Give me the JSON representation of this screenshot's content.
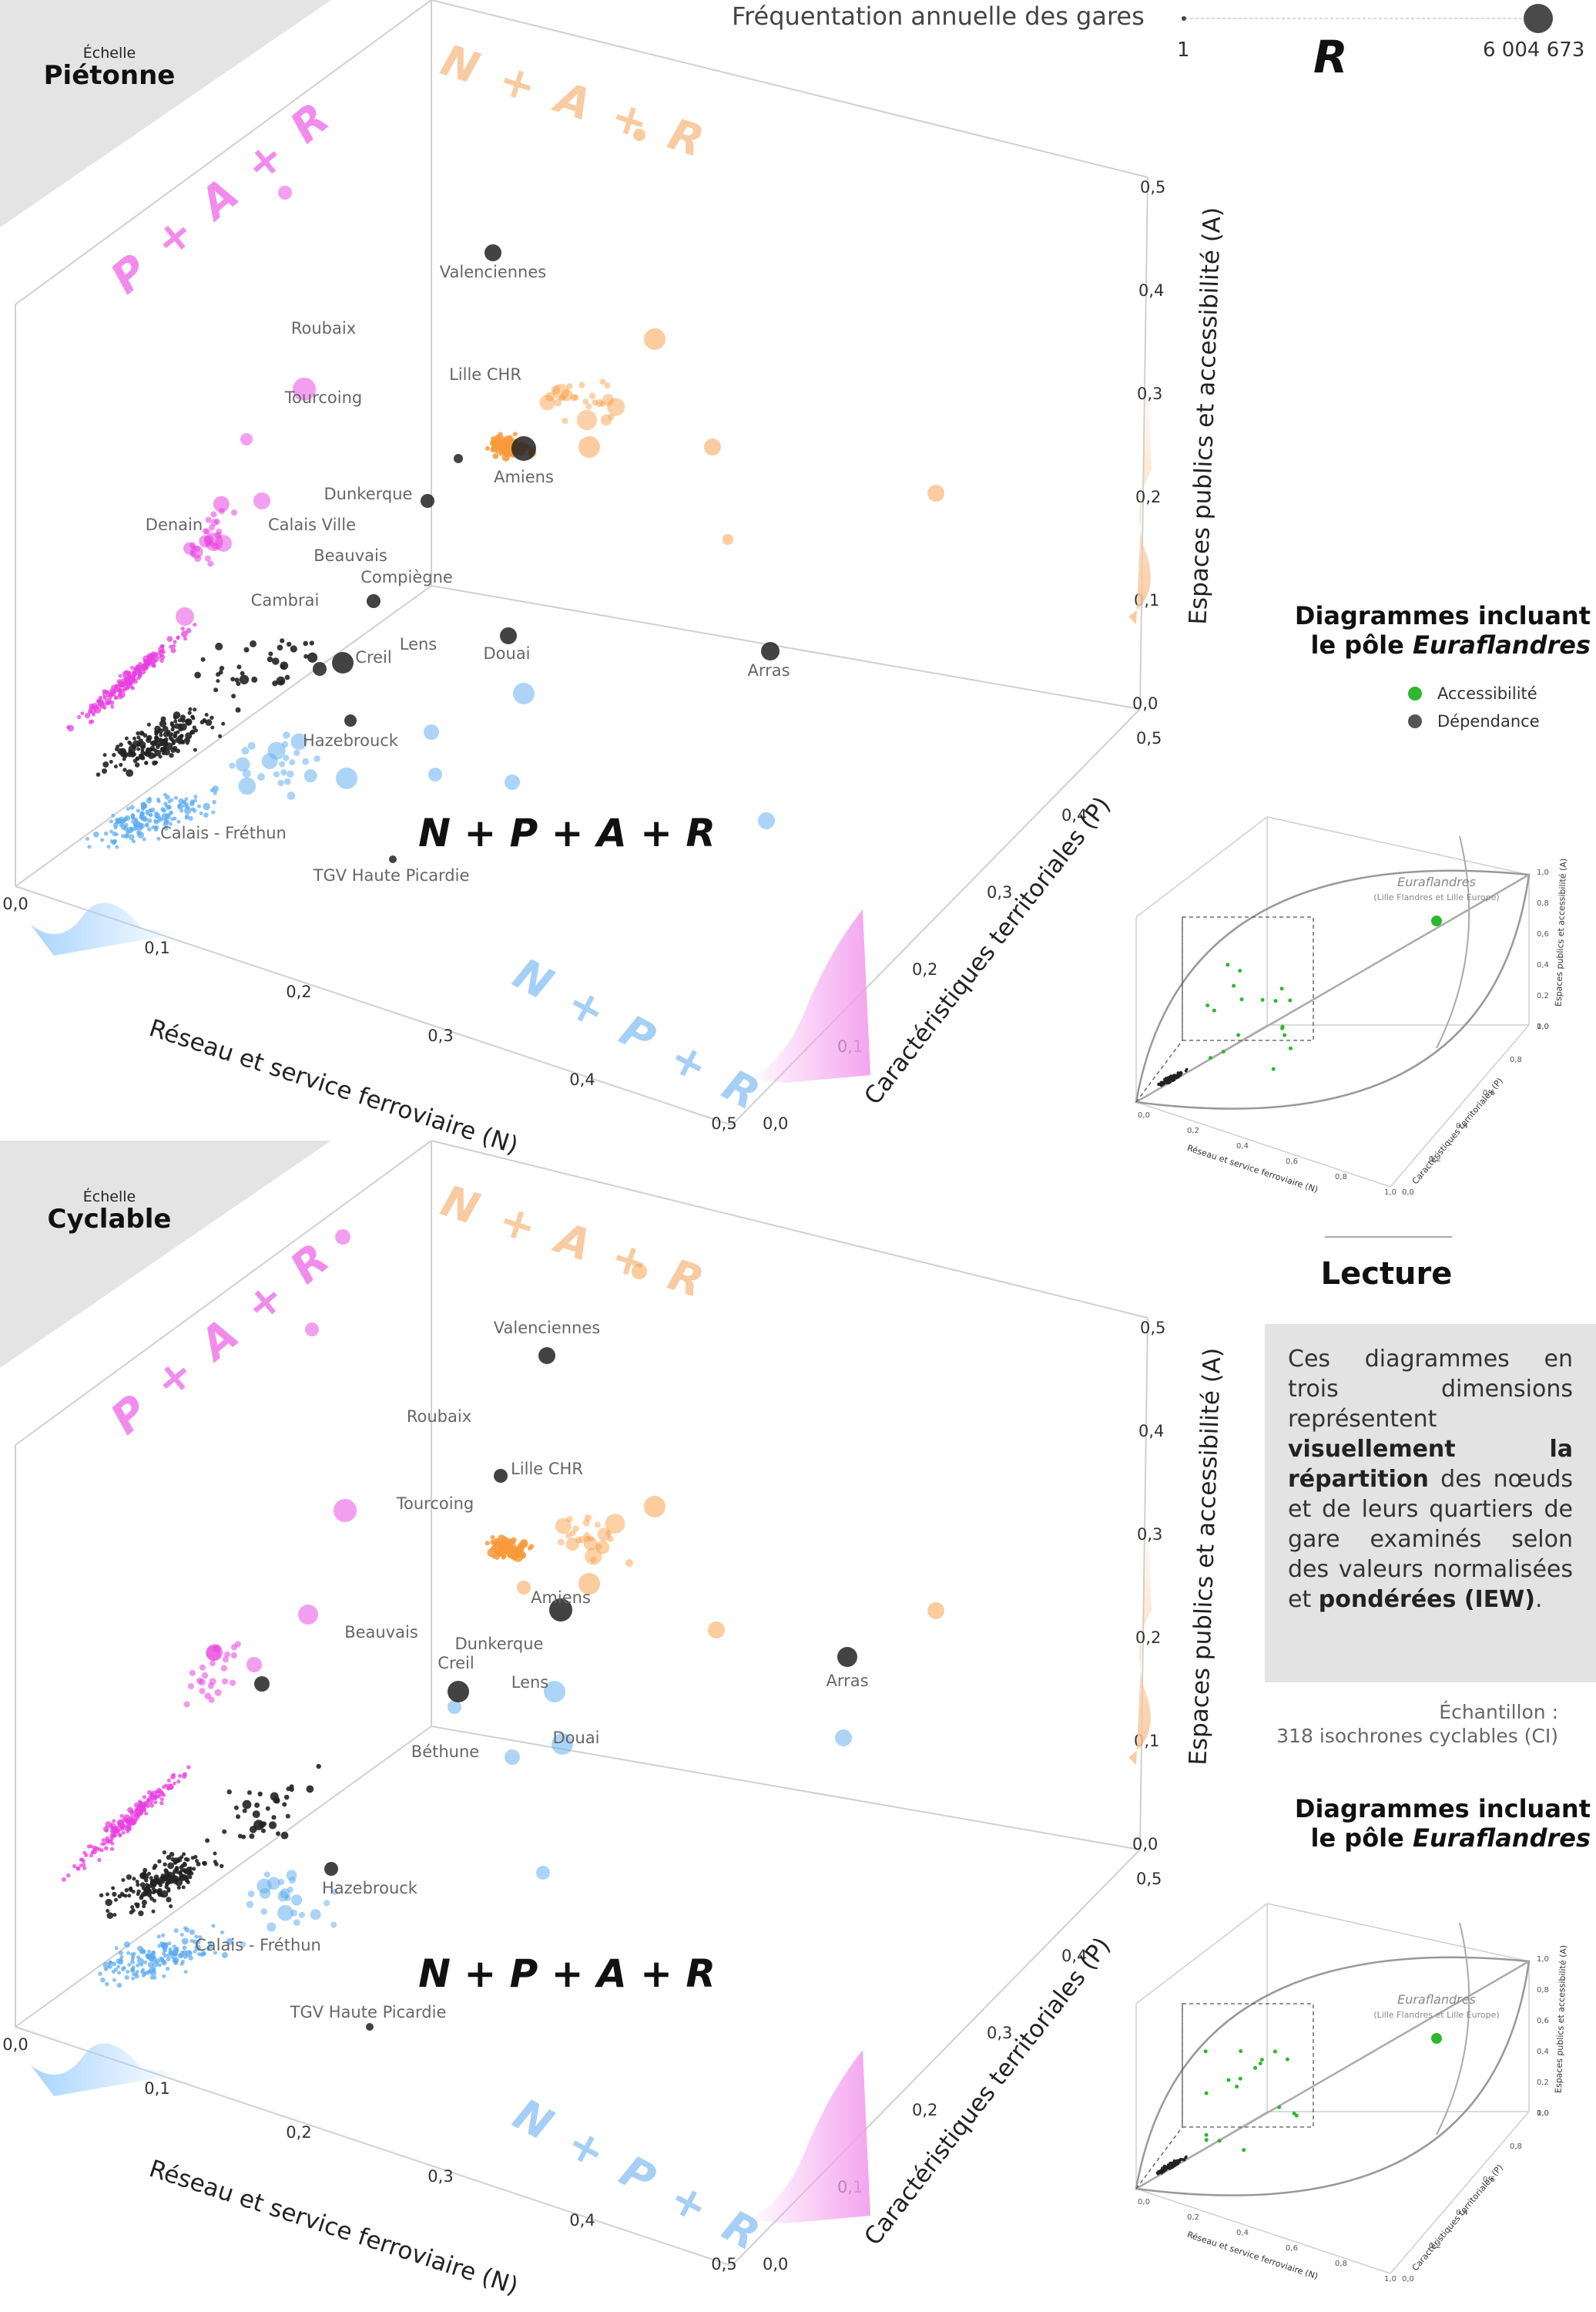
{
  "size_legend": {
    "title": "Fréquentation annuelle des gares",
    "min": "1",
    "max": "6 004 673",
    "letter": "R"
  },
  "colors": {
    "P": "#e83fe0",
    "A": "#f89a3c",
    "N": "#5aaaf0",
    "all": "#222222",
    "grid": "#d0d0d0",
    "accessibilite": "#2db82d",
    "dependance": "#555555"
  },
  "panels": [
    {
      "scale_small": "Échelle",
      "scale_big": "Piétonne",
      "center_label": "N + P + A + R",
      "corner_labels": {
        "PAR": "P + A + R",
        "NAR": "N + A + R",
        "NPR": "N + P + R"
      },
      "axes": {
        "x_label": "Réseau et service ferroviaire (N)",
        "y_label": "Caractéristiques territoriales (P)",
        "z_label": "Espaces publics et accessibilité (A)",
        "x_ticks": [
          "0,0",
          "0,1",
          "0,2",
          "0,3",
          "0,4",
          "0,5"
        ],
        "y_ticks": [
          "0,0",
          "0,1",
          "0,2",
          "0,3",
          "0,4",
          "0,5"
        ],
        "z_ticks": [
          "0,0",
          "0,1",
          "0,2",
          "0,3",
          "0,4",
          "0,5"
        ]
      },
      "stations": [
        "Valenciennes",
        "Roubaix",
        "Lille CHR",
        "Tourcoing",
        "Amiens",
        "Dunkerque",
        "Denain",
        "Calais Ville",
        "Beauvais",
        "Compiègne",
        "Cambrai",
        "Lens",
        "Creil",
        "Douai",
        "Arras",
        "Hazebrouck",
        "Calais - Fréthun",
        "TGV Haute Picardie"
      ]
    },
    {
      "scale_small": "Échelle",
      "scale_big": "Cyclable",
      "center_label": "N + P + A + R",
      "corner_labels": {
        "PAR": "P + A + R",
        "NAR": "N + A + R",
        "NPR": "N + P + R"
      },
      "axes": {
        "x_label": "Réseau et service ferroviaire (N)",
        "y_label": "Caractéristiques territoriales (P)",
        "z_label": "Espaces publics et accessibilité (A)",
        "x_ticks": [
          "0,0",
          "0,1",
          "0,2",
          "0,3",
          "0,4",
          "0,5"
        ],
        "y_ticks": [
          "0,0",
          "0,1",
          "0,2",
          "0,3",
          "0,4",
          "0,5"
        ],
        "z_ticks": [
          "0,0",
          "0,1",
          "0,2",
          "0,3",
          "0,4",
          "0,5"
        ]
      },
      "stations": [
        "Valenciennes",
        "Roubaix",
        "Lille CHR",
        "Tourcoing",
        "Amiens",
        "Dunkerque",
        "Beauvais",
        "Creil",
        "Lens",
        "Béthune",
        "Douai",
        "Arras",
        "Hazebrouck",
        "Calais - Fréthun",
        "TGV Haute Picardie"
      ]
    }
  ],
  "inset": {
    "title_line1": "Diagrammes incluant",
    "title_line2_prefix": "le pôle ",
    "title_line2_emph": "Euraflandres",
    "legend": [
      {
        "label": "Accessibilité",
        "color": "#2db82d"
      },
      {
        "label": "Dépendance",
        "color": "#555555"
      }
    ],
    "pole_label": "Euraflandres",
    "pole_sub": "(Lille Flandres et Lille Europe)",
    "x_label": "Réseau et service ferroviaire (N)",
    "y_label": "Caractéristiques territoriales (P)",
    "z_label": "Espaces publics et accessibilité (A)",
    "ticks": [
      "0,0",
      "0,2",
      "0,4",
      "0,6",
      "0,8",
      "1,0"
    ]
  },
  "lecture": {
    "title": "Lecture",
    "text_parts": [
      {
        "t": "Ces diagrammes en trois dimensions représentent ",
        "b": false
      },
      {
        "t": "visuellement la répartition",
        "b": true
      },
      {
        "t": " des nœuds et de leurs quartiers de gare examinés selon des valeurs normalisées et ",
        "b": false
      },
      {
        "t": "pondérées (IEW)",
        "b": true
      },
      {
        "t": ".",
        "b": false
      }
    ],
    "sample_line1": "Échantillon :",
    "sample_line2": "318 isochrones cyclables (CI)"
  },
  "chart_data": [
    {
      "type": "scatter",
      "title": "Échelle Piétonne",
      "xlabel": "Réseau et service ferroviaire (N)",
      "ylabel": "Caractéristiques territoriales (P)",
      "zlabel": "Espaces publics et accessibilité (A)",
      "xlim": [
        0,
        0.5
      ],
      "ylim": [
        0,
        0.5
      ],
      "zlim": [
        0,
        0.5
      ],
      "labeled_points": [
        {
          "name": "Valenciennes",
          "N": 0.05,
          "P": 0.02,
          "A": 0.36
        },
        {
          "name": "Roubaix",
          "N": 0.15,
          "P": 0.28,
          "A": 0.28
        },
        {
          "name": "Lille CHR",
          "N": 0.12,
          "P": 0.15,
          "A": 0.28
        },
        {
          "name": "Tourcoing",
          "N": 0.14,
          "P": 0.27,
          "A": 0.25
        },
        {
          "name": "Amiens",
          "N": 0.07,
          "P": 0.05,
          "A": 0.22
        },
        {
          "name": "Dunkerque",
          "N": 0.21,
          "P": 0.19,
          "A": 0.19
        },
        {
          "name": "Denain",
          "N": 0.11,
          "P": 0.34,
          "A": 0.21
        },
        {
          "name": "Calais Ville",
          "N": 0.16,
          "P": 0.27,
          "A": 0.19
        },
        {
          "name": "Beauvais",
          "N": 0.17,
          "P": 0.27,
          "A": 0.17
        },
        {
          "name": "Compiègne",
          "N": 0.2,
          "P": 0.22,
          "A": 0.15
        },
        {
          "name": "Cambrai",
          "N": 0.15,
          "P": 0.3,
          "A": 0.15
        },
        {
          "name": "Lens",
          "N": 0.21,
          "P": 0.2,
          "A": 0.12
        },
        {
          "name": "Creil",
          "N": 0.23,
          "P": 0.28,
          "A": 0.09
        },
        {
          "name": "Douai",
          "N": 0.28,
          "P": 0.15,
          "A": 0.1
        },
        {
          "name": "Arras",
          "N": 0.45,
          "P": 0.02,
          "A": 0.07
        },
        {
          "name": "Hazebrouck",
          "N": 0.2,
          "P": 0.3,
          "A": 0.05
        },
        {
          "name": "Calais - Fréthun",
          "N": 0.22,
          "P": 0.38,
          "A": 0.02
        },
        {
          "name": "TGV Haute Picardie",
          "N": 0.25,
          "P": 0.32,
          "A": 0.01
        }
      ]
    },
    {
      "type": "scatter",
      "title": "Échelle Cyclable",
      "xlabel": "Réseau et service ferroviaire (N)",
      "ylabel": "Caractéristiques territoriales (P)",
      "zlabel": "Espaces publics et accessibilité (A)",
      "xlim": [
        0,
        0.5
      ],
      "ylim": [
        0,
        0.5
      ],
      "zlim": [
        0,
        0.5
      ],
      "sample_size": 318,
      "labeled_points": [
        {
          "name": "Valenciennes",
          "N": 0.1,
          "P": 0.03,
          "A": 0.35
        },
        {
          "name": "Roubaix",
          "N": 0.1,
          "P": 0.22,
          "A": 0.33
        },
        {
          "name": "Lille CHR",
          "N": 0.1,
          "P": 0.14,
          "A": 0.3
        },
        {
          "name": "Tourcoing",
          "N": 0.12,
          "P": 0.22,
          "A": 0.28
        },
        {
          "name": "Amiens",
          "N": 0.1,
          "P": 0.05,
          "A": 0.22
        },
        {
          "name": "Dunkerque",
          "N": 0.14,
          "P": 0.1,
          "A": 0.19
        },
        {
          "name": "Beauvais",
          "N": 0.14,
          "P": 0.26,
          "A": 0.16
        },
        {
          "name": "Creil",
          "N": 0.18,
          "P": 0.2,
          "A": 0.14
        },
        {
          "name": "Lens",
          "N": 0.2,
          "P": 0.15,
          "A": 0.14
        },
        {
          "name": "Béthune",
          "N": 0.2,
          "P": 0.25,
          "A": 0.1
        },
        {
          "name": "Douai",
          "N": 0.26,
          "P": 0.15,
          "A": 0.1
        },
        {
          "name": "Arras",
          "N": 0.45,
          "P": 0.02,
          "A": 0.1
        },
        {
          "name": "Hazebrouck",
          "N": 0.18,
          "P": 0.3,
          "A": 0.05
        },
        {
          "name": "Calais - Fréthun",
          "N": 0.22,
          "P": 0.35,
          "A": 0.02
        },
        {
          "name": "TGV Haute Picardie",
          "N": 0.24,
          "P": 0.32,
          "A": 0.01
        }
      ]
    }
  ]
}
